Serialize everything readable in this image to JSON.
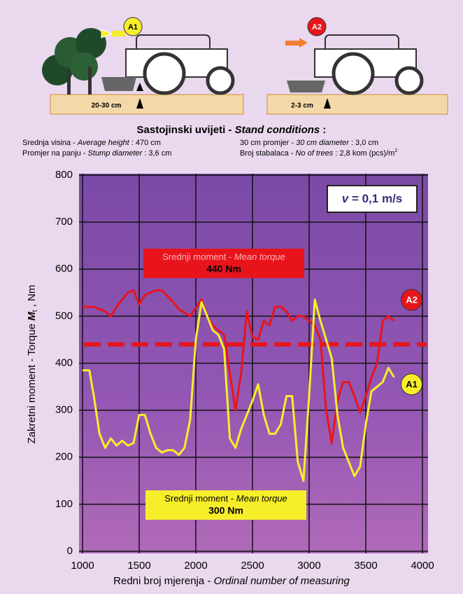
{
  "illustration": {
    "left_label": "A1",
    "left_depth": "20-30 cm",
    "right_label": "A2",
    "right_depth": "2-3 cm"
  },
  "conditions": {
    "title": "Sastojinski uvijeti - ",
    "title_en": "Stand conditions",
    "title_end": " :",
    "items": [
      {
        "hr": "Srednja visina - ",
        "en": "Average height",
        "value": " : 470 cm"
      },
      {
        "hr": "30 cm promjer - ",
        "en": "30 cm diameter",
        "value": " : 3,0 cm"
      },
      {
        "hr": "Promjer na panju - ",
        "en": "Stump diameter",
        "value": " : 3,6 cm"
      },
      {
        "hr": "Broj stabalaca - ",
        "en": "No of trees",
        "value": " : 2,8 kom (pcs)/m",
        "sup": "2"
      }
    ]
  },
  "chart_data": {
    "type": "line",
    "ylabel": {
      "text": "Zakretni moment - Torque ",
      "symbol": "M",
      "sub": "t",
      "unit": " , Nm"
    },
    "xlabel": {
      "text": "Redni broj mjerenja - ",
      "text_en": "Ordinal number of measuring"
    },
    "xlim": [
      1000,
      4000
    ],
    "xticks": [
      1000,
      1500,
      2000,
      2500,
      3000,
      3500,
      4000
    ],
    "ylim": [
      0,
      800
    ],
    "yticks": [
      0,
      100,
      200,
      300,
      400,
      500,
      600,
      700,
      800
    ],
    "grid": true,
    "speed": {
      "symbol": "v",
      "text": " = 0,1 m/s"
    },
    "series": [
      {
        "name": "A2",
        "color": "#e8141c",
        "x": [
          1000,
          1100,
          1200,
          1250,
          1300,
          1400,
          1450,
          1500,
          1550,
          1650,
          1700,
          1800,
          1850,
          1950,
          2050,
          2100,
          2150,
          2200,
          2250,
          2300,
          2350,
          2400,
          2450,
          2500,
          2550,
          2600,
          2650,
          2700,
          2750,
          2800,
          2850,
          2900,
          2950,
          3000,
          3050,
          3100,
          3150,
          3200,
          3250,
          3300,
          3350,
          3400,
          3450,
          3500,
          3550,
          3600,
          3650,
          3700,
          3750
        ],
        "values": [
          520,
          520,
          510,
          500,
          520,
          550,
          555,
          525,
          545,
          555,
          555,
          530,
          515,
          500,
          535,
          500,
          480,
          470,
          460,
          380,
          300,
          380,
          510,
          455,
          450,
          490,
          480,
          520,
          520,
          510,
          490,
          500,
          500,
          490,
          480,
          450,
          300,
          230,
          320,
          360,
          360,
          330,
          295,
          330,
          370,
          400,
          490,
          500,
          490
        ]
      },
      {
        "name": "A1",
        "color": "#f7ee2a",
        "x": [
          1000,
          1060,
          1100,
          1150,
          1200,
          1250,
          1300,
          1350,
          1400,
          1450,
          1500,
          1550,
          1600,
          1650,
          1700,
          1750,
          1800,
          1850,
          1900,
          1950,
          2000,
          2050,
          2100,
          2150,
          2200,
          2250,
          2300,
          2350,
          2400,
          2450,
          2500,
          2550,
          2600,
          2650,
          2700,
          2750,
          2800,
          2850,
          2900,
          2950,
          3000,
          3050,
          3100,
          3150,
          3200,
          3250,
          3300,
          3350,
          3400,
          3450,
          3500,
          3550,
          3600,
          3650,
          3700,
          3750
        ],
        "values": [
          385,
          385,
          330,
          250,
          220,
          240,
          225,
          235,
          225,
          230,
          290,
          290,
          250,
          220,
          210,
          215,
          215,
          205,
          220,
          280,
          450,
          530,
          500,
          470,
          460,
          430,
          240,
          220,
          260,
          290,
          320,
          355,
          290,
          250,
          250,
          270,
          330,
          330,
          190,
          150,
          330,
          535,
          490,
          450,
          410,
          290,
          220,
          190,
          160,
          180,
          270,
          340,
          350,
          360,
          390,
          370
        ]
      }
    ],
    "annotations": [
      {
        "text": "Srednji moment - ",
        "text_en": "Mean torque",
        "value_label": "440 Nm",
        "value": 440,
        "color": "#e8141c"
      },
      {
        "text": "Srednji moment - ",
        "text_en": "Mean torque",
        "value_label": "300 Nm",
        "color": "#f7ee2a"
      }
    ]
  }
}
